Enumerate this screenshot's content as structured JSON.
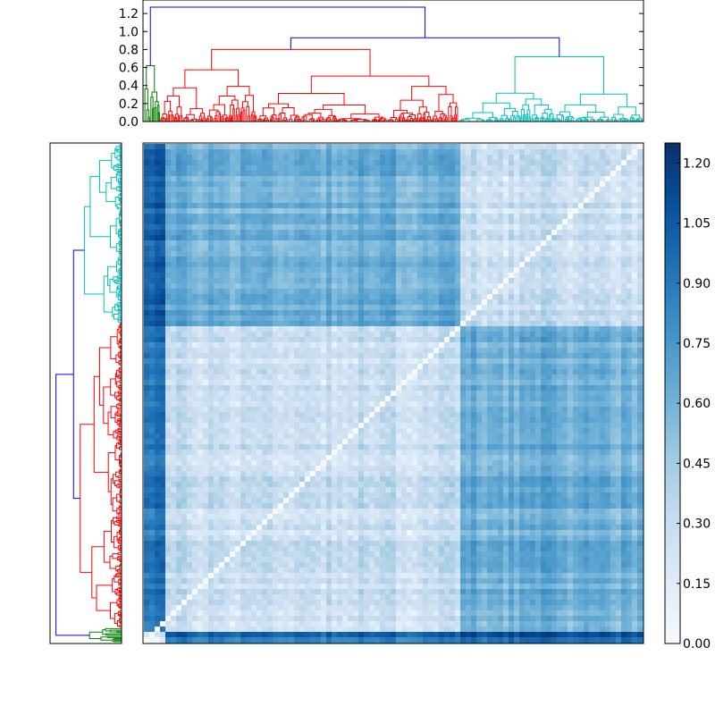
{
  "chart_data": [
    {
      "type": "dendrogram",
      "name": "top-dendrogram",
      "orientation": "top",
      "ylim": [
        0,
        1.35
      ],
      "yticks": [
        0.0,
        0.2,
        0.4,
        0.6,
        0.8,
        1.0,
        1.2
      ],
      "ytick_labels": [
        "0.0",
        "0.2",
        "0.4",
        "0.6",
        "0.8",
        "1.0",
        "1.2"
      ],
      "root_height": 1.27,
      "clusters": [
        {
          "color": "#008000",
          "weight": 3,
          "merge_height": 0.62
        },
        {
          "color": "#ff0000",
          "weight": 55,
          "merge_height": 0.8
        },
        {
          "color": "#00bfbf",
          "weight": 34,
          "merge_height": 0.72
        }
      ],
      "link_color": "#0000ff",
      "inner_merge_height": 0.93
    },
    {
      "type": "dendrogram",
      "name": "left-dendrogram",
      "orientation": "left",
      "clusters": [
        {
          "color": "#00bfbf",
          "weight": 36
        },
        {
          "color": "#ff0000",
          "weight": 61
        },
        {
          "color": "#008000",
          "weight": 3
        }
      ],
      "link_color": "#0000ff"
    },
    {
      "type": "heatmap",
      "name": "distance-matrix",
      "colormap": "Blues",
      "value_range": [
        0.0,
        1.25
      ],
      "row_blocks": [
        "cyan-cluster",
        "red-cluster",
        "green-cluster"
      ],
      "col_blocks": [
        "green-cluster",
        "red-cluster",
        "cyan-cluster"
      ],
      "diagonal": "anti-diagonal",
      "diagonal_value": 0.0
    },
    {
      "type": "colorbar",
      "name": "colorbar",
      "vmin": 0.0,
      "vmax": 1.25,
      "ticks": [
        0.0,
        0.15,
        0.3,
        0.45,
        0.6,
        0.75,
        0.9,
        1.05,
        1.2
      ],
      "tick_labels": [
        "0.00",
        "0.15",
        "0.30",
        "0.45",
        "0.60",
        "0.75",
        "0.90",
        "1.05",
        "1.20"
      ],
      "colors": [
        "#f7fbff",
        "#deebf7",
        "#c6dbef",
        "#9ecae1",
        "#6baed6",
        "#4292c6",
        "#2171b5",
        "#08519c",
        "#08306b"
      ]
    }
  ]
}
